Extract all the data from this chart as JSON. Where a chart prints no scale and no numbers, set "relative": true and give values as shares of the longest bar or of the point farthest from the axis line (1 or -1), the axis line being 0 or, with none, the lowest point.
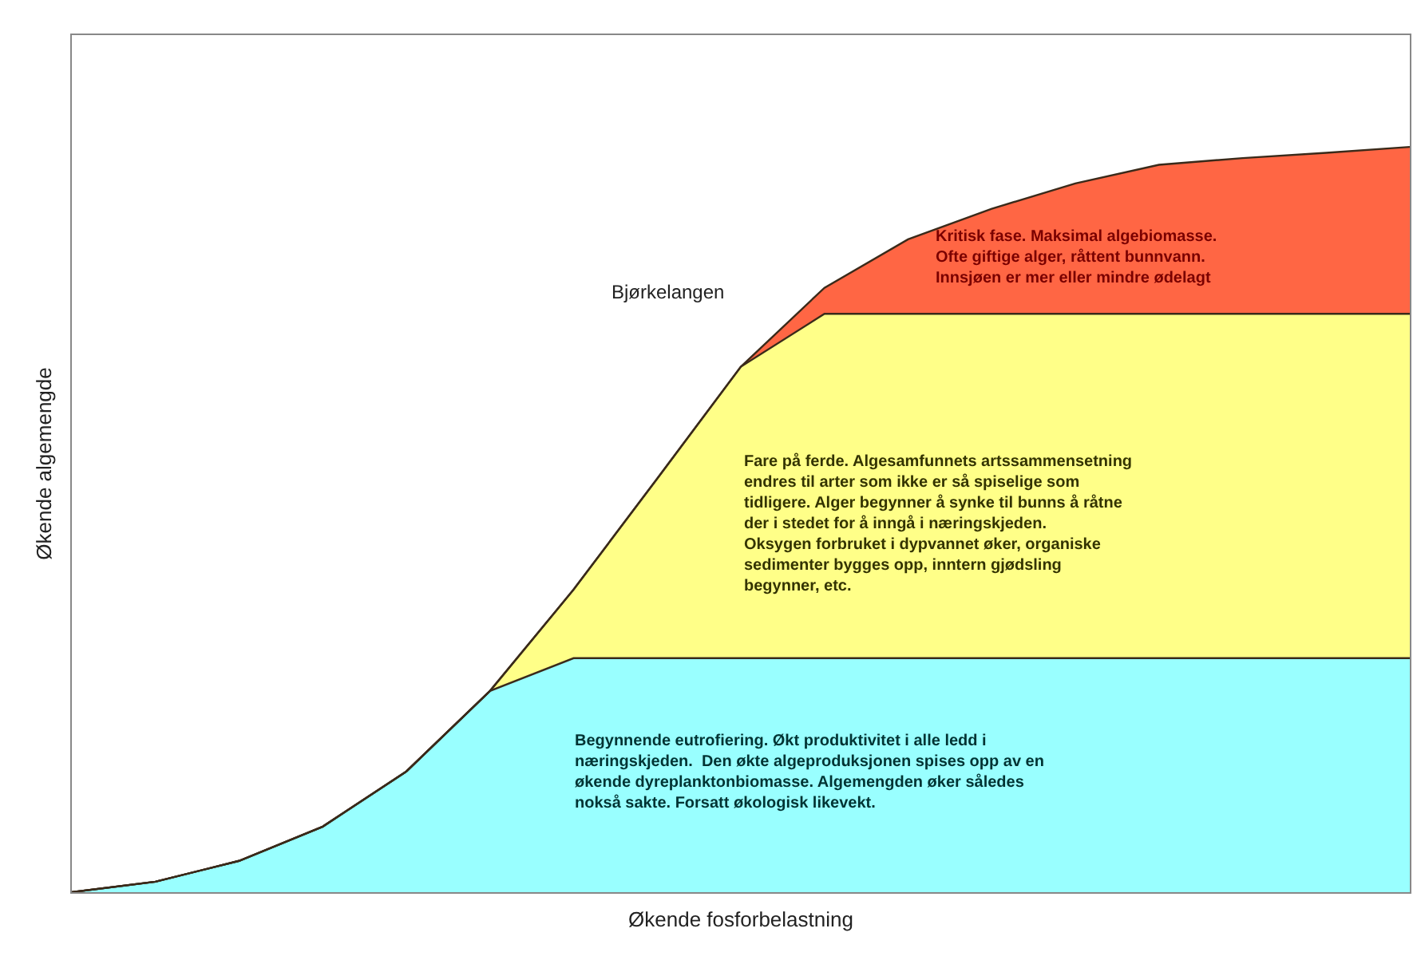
{
  "chart_data": {
    "type": "area",
    "relative": true,
    "stacked": true,
    "xlabel": "Økende fosforbelastning",
    "ylabel": "Økende algemengde",
    "categories": [
      null,
      null,
      null,
      null,
      null,
      null,
      null,
      null,
      null,
      null,
      null,
      null,
      null,
      null,
      null,
      null,
      null
    ],
    "series": [
      {
        "color": "#99ffff",
        "values": [
          0,
          0.014,
          0.042,
          0.088,
          0.162,
          0.27,
          0.314,
          0.314,
          0.314,
          0.314,
          0.314,
          0.314,
          0.314,
          0.314,
          0.314,
          0.314,
          0.314
        ]
      },
      {
        "color": "#ffff88",
        "values": [
          0,
          0,
          0,
          0,
          0,
          0,
          0.092,
          0.241,
          0.391,
          0.462,
          0.462,
          0.462,
          0.462,
          0.462,
          0.462,
          0.462,
          0.462
        ]
      },
      {
        "color": "#ff6644",
        "values": [
          0,
          0,
          0,
          0,
          0,
          0,
          0,
          0,
          0,
          0.035,
          0.1,
          0.141,
          0.175,
          0.2,
          0.209,
          0.216,
          0.224
        ]
      }
    ],
    "annotations": [
      "Bjørkelangen",
      "Kritisk fase. Maksimal algebiomasse.\nOfte giftige alger, råttent bunnvann.\nInnsjøen er mer eller mindre ødelagt",
      "Fare på ferde. Algesamfunnets artssammensetning\nendres til arter som ikke er så spiselige som\ntidligere. Alger begynner å synke til bunns å råtne\nder i stedet for å inngå i næringskjeden.\nOksygen forbruket i dypvannet øker, organiske\nsedimenter bygges opp, inntern gjødsling\nbegynner, etc.",
      "Begynnende eutrofiering. Økt produktivitet i alle ledd i\nnæringskjeden.  Den økte algeproduksjonen spises opp av en\nøkende dyreplanktonbiomasse. Algemengden øker således\nnokså sakte. Forsatt økologisk likevekt."
    ],
    "tick_labels": false
  }
}
